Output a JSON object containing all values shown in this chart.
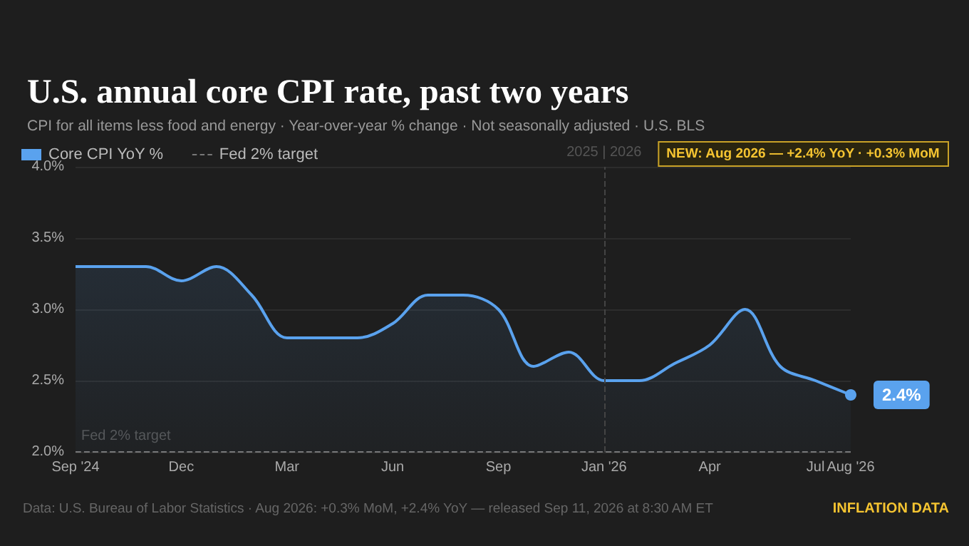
{
  "chart_data": {
    "type": "area",
    "title": "U.S. annual core CPI rate, past two years",
    "subtitle": "CPI for all items less food and energy · Year-over-year % change · Not seasonally adjusted · U.S. BLS",
    "categories": [
      "Sep '24",
      null,
      null,
      "Dec",
      null,
      null,
      "Mar",
      null,
      null,
      "Jun",
      null,
      null,
      "Sep",
      null,
      null,
      "Jan '26",
      null,
      null,
      "Apr",
      null,
      null,
      "Jul",
      "Aug '26"
    ],
    "series": [
      {
        "name": "Core CPI YoY %",
        "color": "#5aa2ee",
        "values": [
          3.3,
          3.3,
          3.3,
          3.2,
          3.3,
          3.1,
          2.8,
          2.8,
          2.8,
          2.9,
          3.1,
          3.1,
          3.0,
          2.6,
          2.7,
          2.5,
          2.5,
          2.62,
          2.75,
          3.0,
          2.6,
          2.5,
          2.4
        ],
        "value_labels": [
          null,
          null,
          null,
          null,
          null,
          null,
          null,
          null,
          null,
          null,
          null,
          null,
          null,
          null,
          null,
          null,
          null,
          null,
          null,
          null,
          null,
          null,
          "2.4%"
        ]
      },
      {
        "name": "Fed 2% target",
        "type": "line",
        "color": "#777777",
        "line_style": "dashed",
        "values": [
          2.0,
          2.0,
          2.0,
          2.0,
          2.0,
          2.0,
          2.0,
          2.0,
          2.0,
          2.0,
          2.0,
          2.0,
          2.0,
          2.0,
          2.0,
          2.0,
          2.0,
          2.0,
          2.0,
          2.0,
          2.0,
          2.0,
          2.0
        ]
      }
    ],
    "ylim": [
      2.0,
      4.0
    ],
    "yticks": [
      {
        "value": 2.0,
        "label": "2.0%"
      },
      {
        "value": 2.5,
        "label": "2.5%"
      },
      {
        "value": 3.0,
        "label": "3.0%"
      },
      {
        "value": 3.5,
        "label": "3.5%"
      },
      {
        "value": 4.0,
        "label": "4.0%"
      }
    ],
    "ref_lines": [
      {
        "axis": "x",
        "value": "Jan '26",
        "label": "2025 | 2026",
        "line_style": "dashed",
        "color": "#444444"
      }
    ],
    "annotations": [
      "NEW: Aug 2026 — +2.4% YoY · +0.3% MoM",
      "Data: U.S. Bureau of Labor Statistics · Aug 2026: +0.3% MoM, +2.4% YoY — released Sep 11, 2026 at 8:30 AM ET",
      "INFLATION DATA",
      {
        "text": "Fed 2% target",
        "y": 2.0
      }
    ],
    "grid": "y",
    "legend": "top left",
    "marker": "none"
  }
}
